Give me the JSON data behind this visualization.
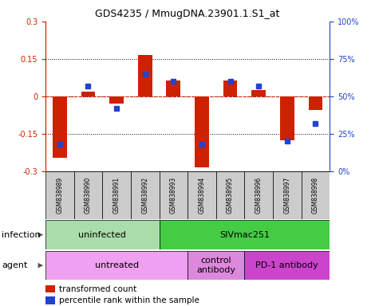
{
  "title": "GDS4235 / MmugDNA.23901.1.S1_at",
  "samples": [
    "GSM838989",
    "GSM838990",
    "GSM838991",
    "GSM838992",
    "GSM838993",
    "GSM838994",
    "GSM838995",
    "GSM838996",
    "GSM838997",
    "GSM838998"
  ],
  "bar_values": [
    -0.245,
    0.02,
    -0.03,
    0.165,
    0.065,
    -0.285,
    0.065,
    0.025,
    -0.175,
    -0.055
  ],
  "dot_values": [
    18,
    57,
    42,
    65,
    60,
    18,
    60,
    57,
    20,
    32
  ],
  "ylim": [
    -0.3,
    0.3
  ],
  "y2lim": [
    0,
    100
  ],
  "bar_color": "#cc2200",
  "dot_color": "#2244cc",
  "dotted_lines": [
    -0.15,
    0.0,
    0.15
  ],
  "infection_groups": [
    {
      "label": "uninfected",
      "start": 0,
      "end": 4,
      "color": "#aaddaa"
    },
    {
      "label": "SIVmac251",
      "start": 4,
      "end": 10,
      "color": "#44cc44"
    }
  ],
  "agent_groups": [
    {
      "label": "untreated",
      "start": 0,
      "end": 5,
      "color": "#f0a0f0"
    },
    {
      "label": "control\nantibody",
      "start": 5,
      "end": 7,
      "color": "#dd88dd"
    },
    {
      "label": "PD-1 antibody",
      "start": 7,
      "end": 10,
      "color": "#cc44cc"
    }
  ],
  "legend_items": [
    {
      "label": "transformed count",
      "color": "#cc2200"
    },
    {
      "label": "percentile rank within the sample",
      "color": "#2244cc"
    }
  ],
  "left_label_infection": "infection",
  "left_label_agent": "agent",
  "bg_color": "#ffffff",
  "bar_width": 0.5,
  "sample_box_color": "#cccccc",
  "yticks": [
    -0.3,
    -0.15,
    0,
    0.15,
    0.3
  ],
  "ytick_labels": [
    "-0.3",
    "-0.15",
    "0",
    "0.15",
    "0.3"
  ],
  "y2ticks": [
    0,
    25,
    50,
    75,
    100
  ],
  "y2tick_labels": [
    "0%",
    "25%",
    "50%",
    "75%",
    "100%"
  ]
}
